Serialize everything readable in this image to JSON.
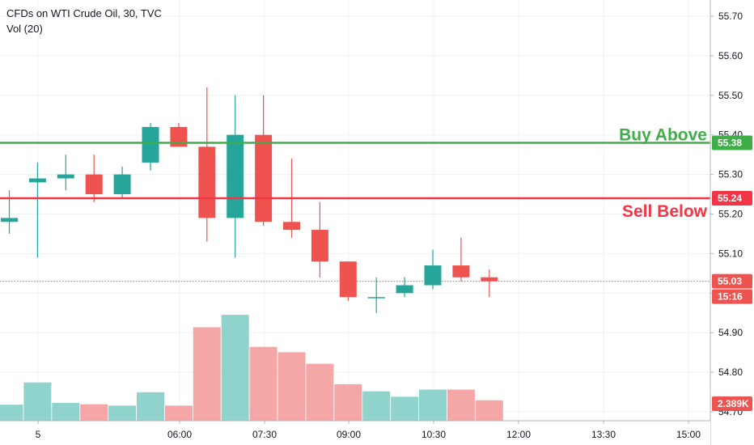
{
  "header": {
    "symbol_line": "CFDs on WTI Crude Oil, 30, TVC",
    "volume_line": "Vol (20)"
  },
  "colors": {
    "up": "#26a69a",
    "down": "#ef5350",
    "vol_up": "#8fd3cc",
    "vol_down": "#f5a6a6",
    "buy_line": "#3fae49",
    "sell_line": "#f23645",
    "grid": "#eef0f3",
    "axis_text": "#131722",
    "last_price_line": "#ef5350"
  },
  "chart_data": {
    "type": "candlestick",
    "title": "CFDs on WTI Crude Oil, 30, TVC",
    "x_ticks": [
      "5",
      "06:00",
      "07:30",
      "09:00",
      "10:30",
      "12:00",
      "13:30",
      "15:00"
    ],
    "y_ticks": [
      "54.70",
      "54.80",
      "54.90",
      "55.00",
      "55.10",
      "55.20",
      "55.30",
      "55.40",
      "55.50",
      "55.60",
      "55.70"
    ],
    "ylim": [
      54.68,
      55.73
    ],
    "candles": [
      {
        "open": 55.18,
        "high": 55.26,
        "low": 55.15,
        "close": 55.19
      },
      {
        "open": 55.28,
        "high": 55.33,
        "low": 55.09,
        "close": 55.29
      },
      {
        "open": 55.29,
        "high": 55.35,
        "low": 55.26,
        "close": 55.3
      },
      {
        "open": 55.3,
        "high": 55.35,
        "low": 55.23,
        "close": 55.25
      },
      {
        "open": 55.25,
        "high": 55.32,
        "low": 55.24,
        "close": 55.3
      },
      {
        "open": 55.33,
        "high": 55.43,
        "low": 55.31,
        "close": 55.42
      },
      {
        "open": 55.42,
        "high": 55.43,
        "low": 55.37,
        "close": 55.37
      },
      {
        "open": 55.37,
        "high": 55.52,
        "low": 55.13,
        "close": 55.19
      },
      {
        "open": 55.19,
        "high": 55.5,
        "low": 55.09,
        "close": 55.4
      },
      {
        "open": 55.4,
        "high": 55.5,
        "low": 55.17,
        "close": 55.18
      },
      {
        "open": 55.18,
        "high": 55.34,
        "low": 55.14,
        "close": 55.16
      },
      {
        "open": 55.16,
        "high": 55.23,
        "low": 55.04,
        "close": 55.08
      },
      {
        "open": 55.08,
        "high": 55.08,
        "low": 54.98,
        "close": 54.99
      },
      {
        "open": 54.99,
        "high": 55.04,
        "low": 54.95,
        "close": 54.99
      },
      {
        "open": 55.0,
        "high": 55.04,
        "low": 54.99,
        "close": 55.02
      },
      {
        "open": 55.02,
        "high": 55.11,
        "low": 55.01,
        "close": 55.07
      },
      {
        "open": 55.07,
        "high": 55.14,
        "low": 55.03,
        "close": 55.04
      },
      {
        "open": 55.04,
        "high": 55.06,
        "low": 54.99,
        "close": 55.03
      }
    ],
    "volume": [
      {
        "value": 180,
        "up": true
      },
      {
        "value": 430,
        "up": true
      },
      {
        "value": 200,
        "up": true
      },
      {
        "value": 185,
        "up": false
      },
      {
        "value": 170,
        "up": true
      },
      {
        "value": 320,
        "up": true
      },
      {
        "value": 170,
        "up": false
      },
      {
        "value": 1050,
        "up": false
      },
      {
        "value": 1190,
        "up": true
      },
      {
        "value": 830,
        "up": false
      },
      {
        "value": 770,
        "up": false
      },
      {
        "value": 640,
        "up": false
      },
      {
        "value": 410,
        "up": false
      },
      {
        "value": 330,
        "up": true
      },
      {
        "value": 270,
        "up": true
      },
      {
        "value": 350,
        "up": true
      },
      {
        "value": 350,
        "up": false
      },
      {
        "value": 230,
        "up": false
      }
    ],
    "volume_max": 2000,
    "buy_level": 55.38,
    "sell_level": 55.24,
    "last_price": 55.03,
    "annotations": {
      "buy_text": "Buy Above",
      "sell_text": "Sell Below",
      "buy_label": "55.38",
      "sell_label": "55.24",
      "last_label": "55.03",
      "countdown": "15:16",
      "volume_label": "2.389K"
    }
  }
}
